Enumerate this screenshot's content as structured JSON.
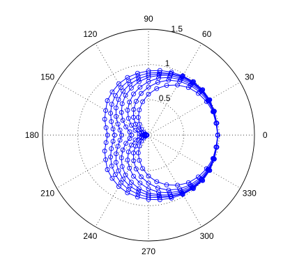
{
  "chart_data": {
    "type": "line",
    "polar": true,
    "title": "",
    "r_max": 1.5,
    "radial_ticks": [
      {
        "value": 0.5,
        "label": "0.5"
      },
      {
        "value": 1.0,
        "label": "1"
      },
      {
        "value": 1.5,
        "label": "1.5"
      }
    ],
    "angle_ticks": [
      {
        "deg": 0,
        "label": "0"
      },
      {
        "deg": 30,
        "label": "30"
      },
      {
        "deg": 60,
        "label": "60"
      },
      {
        "deg": 90,
        "label": "90"
      },
      {
        "deg": 120,
        "label": "120"
      },
      {
        "deg": 150,
        "label": "150"
      },
      {
        "deg": 180,
        "label": "180"
      },
      {
        "deg": 210,
        "label": "210"
      },
      {
        "deg": 240,
        "label": "240"
      },
      {
        "deg": 270,
        "label": "270"
      },
      {
        "deg": 300,
        "label": "300"
      },
      {
        "deg": 330,
        "label": "330"
      }
    ],
    "grid": true,
    "marker": "circle",
    "colors": {
      "series": "#0000ff",
      "grid": "#000000",
      "background": "#ffffff"
    },
    "theta_deg": [
      0,
      10,
      20,
      30,
      40,
      50,
      60,
      70,
      80,
      90,
      100,
      110,
      120,
      130,
      140,
      150,
      160,
      170,
      180,
      190,
      200,
      210,
      220,
      230,
      240,
      250,
      260,
      270,
      280,
      290,
      300,
      310,
      320,
      330,
      340,
      350,
      360
    ],
    "series": [
      {
        "values": [
          0.98,
          0.98,
          0.99,
          1.0,
          1.0,
          0.99,
          0.97,
          0.95,
          0.93,
          0.91,
          0.89,
          0.87,
          0.84,
          0.8,
          0.76,
          0.7,
          0.66,
          0.61,
          0.58,
          0.61,
          0.66,
          0.7,
          0.76,
          0.8,
          0.84,
          0.87,
          0.89,
          0.91,
          0.93,
          0.95,
          0.97,
          0.99,
          1.0,
          1.0,
          0.99,
          0.98,
          0.98
        ]
      },
      {
        "values": [
          0.98,
          0.98,
          0.99,
          1.0,
          1.0,
          0.98,
          0.96,
          0.93,
          0.9,
          0.88,
          0.85,
          0.82,
          0.78,
          0.73,
          0.68,
          0.62,
          0.56,
          0.51,
          0.48,
          0.51,
          0.56,
          0.62,
          0.68,
          0.73,
          0.78,
          0.82,
          0.85,
          0.88,
          0.9,
          0.93,
          0.96,
          0.98,
          1.0,
          1.0,
          0.99,
          0.98,
          0.98
        ]
      },
      {
        "values": [
          0.98,
          0.98,
          0.99,
          0.99,
          0.99,
          0.97,
          0.95,
          0.92,
          0.88,
          0.85,
          0.81,
          0.77,
          0.72,
          0.66,
          0.6,
          0.53,
          0.46,
          0.41,
          0.38,
          0.41,
          0.46,
          0.53,
          0.6,
          0.66,
          0.72,
          0.77,
          0.81,
          0.85,
          0.88,
          0.92,
          0.95,
          0.97,
          0.99,
          0.99,
          0.99,
          0.98,
          0.98
        ]
      },
      {
        "values": [
          0.98,
          0.98,
          0.99,
          0.99,
          0.98,
          0.96,
          0.93,
          0.9,
          0.86,
          0.82,
          0.77,
          0.71,
          0.65,
          0.58,
          0.5,
          0.42,
          0.34,
          0.27,
          0.24,
          0.27,
          0.34,
          0.42,
          0.5,
          0.58,
          0.65,
          0.71,
          0.77,
          0.82,
          0.86,
          0.9,
          0.93,
          0.96,
          0.98,
          0.99,
          0.99,
          0.98,
          0.98
        ]
      },
      {
        "values": [
          0.98,
          0.98,
          0.98,
          0.98,
          0.97,
          0.94,
          0.91,
          0.87,
          0.82,
          0.76,
          0.69,
          0.62,
          0.54,
          0.46,
          0.37,
          0.28,
          0.2,
          0.13,
          0.09,
          0.13,
          0.2,
          0.28,
          0.37,
          0.46,
          0.54,
          0.62,
          0.69,
          0.76,
          0.82,
          0.87,
          0.91,
          0.94,
          0.97,
          0.98,
          0.98,
          0.98,
          0.98
        ]
      },
      {
        "values": [
          0.98,
          0.98,
          0.98,
          0.97,
          0.95,
          0.92,
          0.88,
          0.83,
          0.76,
          0.68,
          0.6,
          0.51,
          0.42,
          0.33,
          0.24,
          0.16,
          0.1,
          0.06,
          0.05,
          0.06,
          0.1,
          0.16,
          0.24,
          0.33,
          0.42,
          0.51,
          0.6,
          0.68,
          0.76,
          0.83,
          0.88,
          0.92,
          0.95,
          0.97,
          0.98,
          0.98,
          0.98
        ]
      },
      {
        "values": [
          0.98,
          0.97,
          0.97,
          0.95,
          0.92,
          0.88,
          0.82,
          0.75,
          0.67,
          0.58,
          0.48,
          0.38,
          0.29,
          0.2,
          0.13,
          0.08,
          0.05,
          0.03,
          0.02,
          0.03,
          0.05,
          0.08,
          0.13,
          0.2,
          0.29,
          0.38,
          0.48,
          0.58,
          0.67,
          0.75,
          0.82,
          0.88,
          0.92,
          0.95,
          0.97,
          0.97,
          0.98
        ]
      }
    ]
  }
}
